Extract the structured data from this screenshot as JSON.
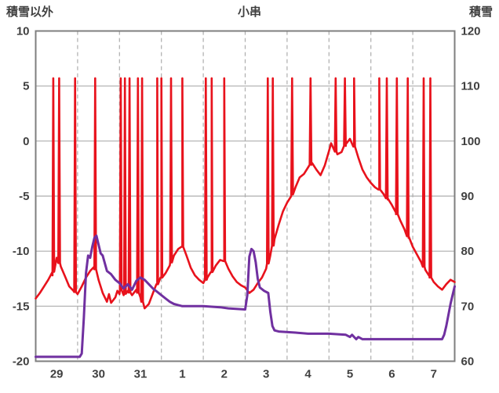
{
  "chart_data": {
    "type": "line",
    "title": "小串",
    "x_axis": {
      "day_labels": [
        "29",
        "30",
        "31",
        "1",
        "2",
        "3",
        "4",
        "5",
        "6",
        "7"
      ],
      "range": [
        0,
        10
      ]
    },
    "y_left": {
      "title": "積雪以外",
      "range": [
        -20,
        10
      ],
      "ticks": [
        10,
        5,
        0,
        -5,
        -10,
        -15,
        -20
      ]
    },
    "y_right": {
      "title": "積雪",
      "range": [
        60,
        120
      ],
      "ticks": [
        120,
        110,
        100,
        90,
        80,
        70,
        60
      ]
    },
    "grid": {
      "horizontal": [
        5,
        0,
        -5,
        -10,
        -15
      ],
      "vertical_dashed": [
        1,
        2,
        3,
        4,
        5,
        6,
        7,
        8,
        9
      ],
      "frame_color": "#7f7f7f",
      "line_color": "#adadad"
    },
    "series": [
      {
        "name": "積雪以外",
        "axis": "left",
        "color": "#e8121c",
        "width": 2.6,
        "base_points": [
          [
            0,
            -14.3
          ],
          [
            0.1,
            -13.8
          ],
          [
            0.2,
            -13.2
          ],
          [
            0.3,
            -12.6
          ],
          [
            0.4,
            -12.2
          ],
          [
            0.5,
            -10.6
          ],
          [
            0.6,
            -11.4
          ],
          [
            0.7,
            -12.3
          ],
          [
            0.8,
            -13.2
          ],
          [
            0.9,
            -13.6
          ],
          [
            1,
            -13.9
          ],
          [
            1.1,
            -13.2
          ],
          [
            1.2,
            -12.4
          ],
          [
            1.3,
            -11.8
          ],
          [
            1.4,
            -11.4
          ],
          [
            1.5,
            -12.6
          ],
          [
            1.6,
            -13.8
          ],
          [
            1.7,
            -14.6
          ],
          [
            1.75,
            -13.9
          ],
          [
            1.8,
            -14.7
          ],
          [
            1.9,
            -14.2
          ],
          [
            1.95,
            -13.6
          ],
          [
            2,
            -13.9
          ],
          [
            2.05,
            -13.3
          ],
          [
            2.1,
            -14
          ],
          [
            2.2,
            -13.6
          ],
          [
            2.3,
            -14
          ],
          [
            2.4,
            -13.5
          ],
          [
            2.5,
            -14.2
          ],
          [
            2.6,
            -15.2
          ],
          [
            2.7,
            -14.8
          ],
          [
            2.8,
            -13.8
          ],
          [
            2.9,
            -13
          ],
          [
            3,
            -12.4
          ],
          [
            3.1,
            -12
          ],
          [
            3.2,
            -11.3
          ],
          [
            3.3,
            -10.4
          ],
          [
            3.4,
            -9.8
          ],
          [
            3.5,
            -9.6
          ],
          [
            3.6,
            -10.4
          ],
          [
            3.7,
            -11.5
          ],
          [
            3.8,
            -12.2
          ],
          [
            3.9,
            -12.6
          ],
          [
            4,
            -12.9
          ],
          [
            4.1,
            -12.4
          ],
          [
            4.2,
            -11.9
          ],
          [
            4.3,
            -11.3
          ],
          [
            4.4,
            -10.8
          ],
          [
            4.5,
            -10.9
          ],
          [
            4.6,
            -11.6
          ],
          [
            4.7,
            -12.3
          ],
          [
            4.8,
            -12.8
          ],
          [
            4.9,
            -13.1
          ],
          [
            5,
            -13.3
          ],
          [
            5.1,
            -13.8
          ],
          [
            5.2,
            -13.5
          ],
          [
            5.3,
            -12.9
          ],
          [
            5.4,
            -12.4
          ],
          [
            5.5,
            -11.6
          ],
          [
            5.6,
            -10.4
          ],
          [
            5.7,
            -8.9
          ],
          [
            5.8,
            -7.6
          ],
          [
            5.9,
            -6.4
          ],
          [
            6,
            -5.6
          ],
          [
            6.1,
            -5
          ],
          [
            6.2,
            -4.2
          ],
          [
            6.3,
            -3.3
          ],
          [
            6.4,
            -3
          ],
          [
            6.5,
            -2.4
          ],
          [
            6.6,
            -2
          ],
          [
            6.7,
            -2.6
          ],
          [
            6.8,
            -3.1
          ],
          [
            6.9,
            -2.2
          ],
          [
            7,
            -0.9
          ],
          [
            7.05,
            -0.2
          ],
          [
            7.1,
            -0.6
          ],
          [
            7.2,
            -1.2
          ],
          [
            7.3,
            -1
          ],
          [
            7.4,
            -0.3
          ],
          [
            7.5,
            0.2
          ],
          [
            7.6,
            -0.5
          ],
          [
            7.7,
            -1.5
          ],
          [
            7.8,
            -2.6
          ],
          [
            7.9,
            -3.3
          ],
          [
            8,
            -3.8
          ],
          [
            8.1,
            -4.2
          ],
          [
            8.2,
            -4.4
          ],
          [
            8.3,
            -4.8
          ],
          [
            8.4,
            -5.3
          ],
          [
            8.5,
            -5.8
          ],
          [
            8.6,
            -6.5
          ],
          [
            8.7,
            -7.2
          ],
          [
            8.8,
            -8
          ],
          [
            8.9,
            -8.8
          ],
          [
            9,
            -9.6
          ],
          [
            9.1,
            -10.3
          ],
          [
            9.2,
            -11
          ],
          [
            9.3,
            -11.7
          ],
          [
            9.4,
            -12.3
          ],
          [
            9.5,
            -12.8
          ],
          [
            9.6,
            -13.2
          ],
          [
            9.7,
            -13.5
          ],
          [
            9.8,
            -13
          ],
          [
            9.9,
            -12.6
          ],
          [
            10,
            -12.8
          ]
        ],
        "spikes": {
          "x": [
            0.42,
            0.56,
            0.94,
            1.42,
            2.03,
            2.13,
            2.24,
            2.44,
            2.54,
            2.9,
            3,
            3.23,
            3.5,
            4.06,
            4.2,
            4.5,
            5.54,
            5.66,
            6.12,
            6.56,
            7.16,
            7.38,
            7.6,
            8.2,
            8.38,
            8.62,
            8.88,
            9.26,
            9.42
          ],
          "peak": 5.7
        }
      },
      {
        "name": "積雪",
        "axis": "right",
        "color": "#7030a0",
        "width": 3,
        "points": [
          [
            0,
            60.8
          ],
          [
            1.05,
            60.8
          ],
          [
            1.1,
            61.4
          ],
          [
            1.15,
            68
          ],
          [
            1.2,
            76
          ],
          [
            1.25,
            79.2
          ],
          [
            1.3,
            78.8
          ],
          [
            1.35,
            80.8
          ],
          [
            1.4,
            82.4
          ],
          [
            1.45,
            82.8
          ],
          [
            1.5,
            81.2
          ],
          [
            1.55,
            79.6
          ],
          [
            1.6,
            79.2
          ],
          [
            1.7,
            76.4
          ],
          [
            1.8,
            75.8
          ],
          [
            1.9,
            74.8
          ],
          [
            2,
            74.2
          ],
          [
            2.1,
            73.2
          ],
          [
            2.2,
            74
          ],
          [
            2.3,
            73
          ],
          [
            2.4,
            74.6
          ],
          [
            2.5,
            75.2
          ],
          [
            2.6,
            74.8
          ],
          [
            2.7,
            74
          ],
          [
            2.8,
            73.2
          ],
          [
            2.9,
            72.6
          ],
          [
            3,
            72
          ],
          [
            3.1,
            71.4
          ],
          [
            3.2,
            70.8
          ],
          [
            3.3,
            70.4
          ],
          [
            3.4,
            70.2
          ],
          [
            3.5,
            70
          ],
          [
            4,
            70
          ],
          [
            4.4,
            69.8
          ],
          [
            4.6,
            69.6
          ],
          [
            5,
            69.4
          ],
          [
            5.05,
            72
          ],
          [
            5.1,
            79
          ],
          [
            5.15,
            80.4
          ],
          [
            5.2,
            80
          ],
          [
            5.25,
            78
          ],
          [
            5.3,
            75
          ],
          [
            5.35,
            73.4
          ],
          [
            5.45,
            72.8
          ],
          [
            5.55,
            72.4
          ],
          [
            5.6,
            69
          ],
          [
            5.65,
            66.4
          ],
          [
            5.7,
            65.6
          ],
          [
            5.8,
            65.4
          ],
          [
            6.2,
            65.2
          ],
          [
            6.5,
            65
          ],
          [
            7,
            65
          ],
          [
            7.4,
            64.8
          ],
          [
            7.5,
            64.4
          ],
          [
            7.55,
            64.8
          ],
          [
            7.65,
            64
          ],
          [
            7.7,
            64.4
          ],
          [
            7.8,
            64
          ],
          [
            9.7,
            64
          ],
          [
            9.75,
            64.8
          ],
          [
            9.8,
            66.4
          ],
          [
            9.85,
            68.4
          ],
          [
            9.9,
            70.4
          ],
          [
            9.95,
            72
          ],
          [
            10,
            73.6
          ]
        ]
      }
    ]
  }
}
